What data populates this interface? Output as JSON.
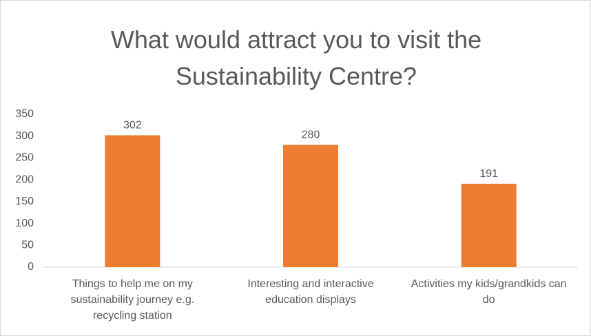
{
  "chart_data": {
    "type": "bar",
    "title": "What would attract you to visit the Sustainability Centre?",
    "categories": [
      "Things to help me on my sustainability journey e.g. recycling station",
      "Interesting and interactive education displays",
      "Activities my kids/grandkids can do"
    ],
    "values": [
      302,
      280,
      191
    ],
    "color": "#ed7d31",
    "ylim": [
      0,
      350
    ],
    "yticks": [
      0,
      50,
      100,
      150,
      200,
      250,
      300,
      350
    ],
    "grid": false,
    "data_labels": true
  }
}
